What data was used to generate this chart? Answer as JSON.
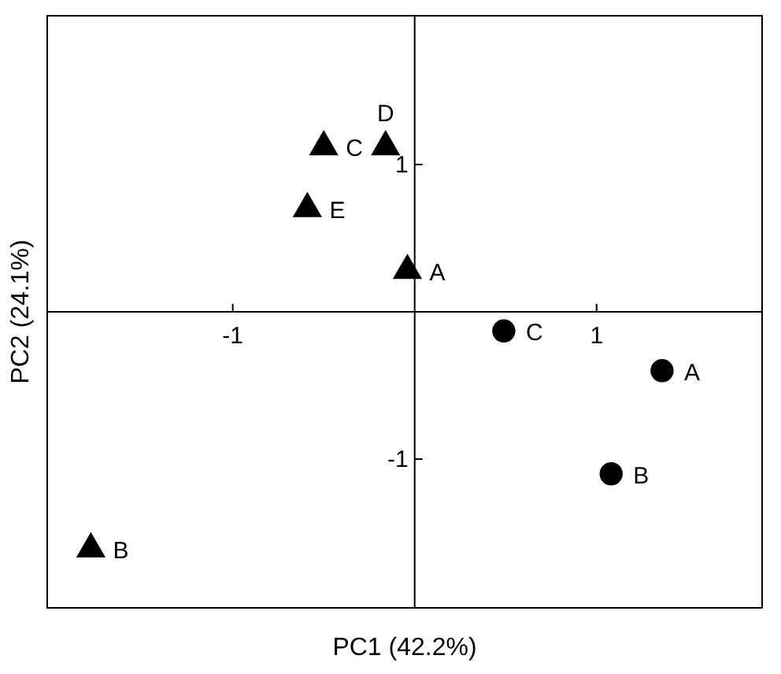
{
  "chart_data": {
    "type": "scatter",
    "xlabel": "PC1 (42.2%)",
    "ylabel": "PC2 (24.1%)",
    "xlim": [
      -2.02,
      1.91
    ],
    "ylim": [
      -2.01,
      2.01
    ],
    "xticks": [
      -1,
      1
    ],
    "yticks": [
      -1,
      1
    ],
    "grid": false,
    "series": [
      {
        "color": "#000000",
        "marker": "triangle",
        "x": [
          -0.5,
          -0.16,
          -0.59,
          -0.04,
          -1.78
        ],
        "values": [
          1.12,
          1.12,
          0.7,
          0.28,
          -1.61
        ]
      },
      {
        "color": "#000000",
        "marker": "circle",
        "x": [
          0.49,
          1.36,
          1.08
        ],
        "values": [
          -0.13,
          -0.4,
          -1.1
        ]
      }
    ],
    "annotations": [
      {
        "text": "C",
        "x": -0.5,
        "y": 1.12
      },
      {
        "text": "D",
        "x": -0.16,
        "y": 1.12
      },
      {
        "text": "E",
        "x": -0.59,
        "y": 0.7
      },
      {
        "text": "A",
        "x": -0.04,
        "y": 0.28
      },
      {
        "text": "B",
        "x": -1.78,
        "y": -1.61
      },
      {
        "text": "C",
        "x": 0.49,
        "y": -0.13
      },
      {
        "text": "A",
        "x": 1.36,
        "y": -0.4
      },
      {
        "text": "B",
        "x": 1.08,
        "y": -1.1
      }
    ]
  }
}
